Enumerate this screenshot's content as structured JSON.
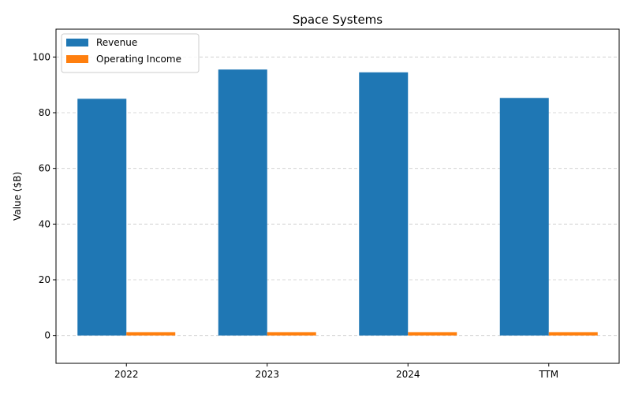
{
  "chart_data": {
    "type": "bar",
    "title": "Space Systems",
    "xlabel": "",
    "ylabel": "Value ($B)",
    "categories": [
      "2022",
      "2023",
      "2024",
      "TTM"
    ],
    "ylim": [
      -10,
      110
    ],
    "yticks": [
      0,
      20,
      40,
      60,
      80,
      100
    ],
    "grid": "y-dashed",
    "legend_position": "top-left",
    "series": [
      {
        "name": "Revenue",
        "values": [
          85.0,
          95.5,
          94.5,
          85.3
        ],
        "color": "#1f77b4"
      },
      {
        "name": "Operating Income",
        "values": [
          1.2,
          1.2,
          1.2,
          1.2
        ],
        "color": "#ff7f0e"
      }
    ]
  }
}
